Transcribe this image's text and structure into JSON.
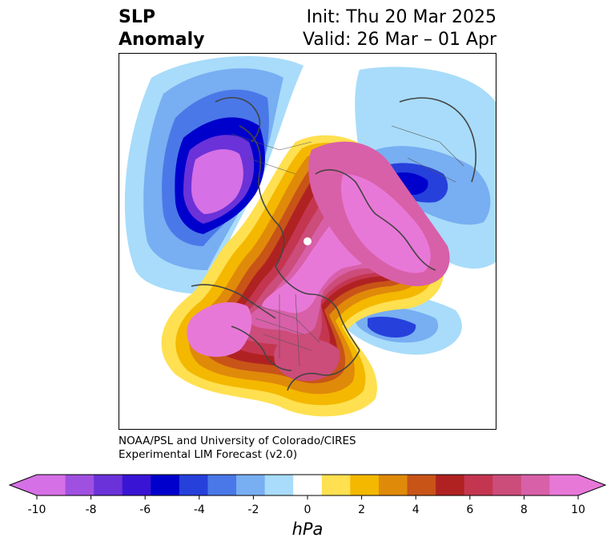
{
  "title": {
    "left_line1": "SLP",
    "left_line2": "Anomaly",
    "right_line1": "Init: Thu 20 Mar 2025",
    "right_line2": "Valid: 26 Mar – 01 Apr"
  },
  "credit": {
    "line1": "NOAA/PSL and University of Colorado/CIRES",
    "line2": "Experimental LIM Forecast (v2.0)"
  },
  "colorbar": {
    "unit": "hPa",
    "ticks": [
      "-10",
      "-8",
      "-6",
      "-4",
      "-2",
      "0",
      "2",
      "4",
      "6",
      "8",
      "10"
    ],
    "tick_values": [
      -10,
      -8,
      -6,
      -4,
      -2,
      0,
      2,
      4,
      6,
      8,
      10
    ],
    "min": -10,
    "max": 10,
    "colors": [
      "#d670e6",
      "#a050e0",
      "#6a32d8",
      "#3a14d4",
      "#0000cc",
      "#2640dc",
      "#4a78e8",
      "#78aef2",
      "#a8dcfa",
      "#ffffff",
      "#ffe050",
      "#f4b800",
      "#e08a0a",
      "#c85418",
      "#b02222",
      "#c43650",
      "#cc4c7a",
      "#d860a8",
      "#e878d8"
    ],
    "under_color": "#d670e6",
    "over_color": "#e878d8"
  }
}
